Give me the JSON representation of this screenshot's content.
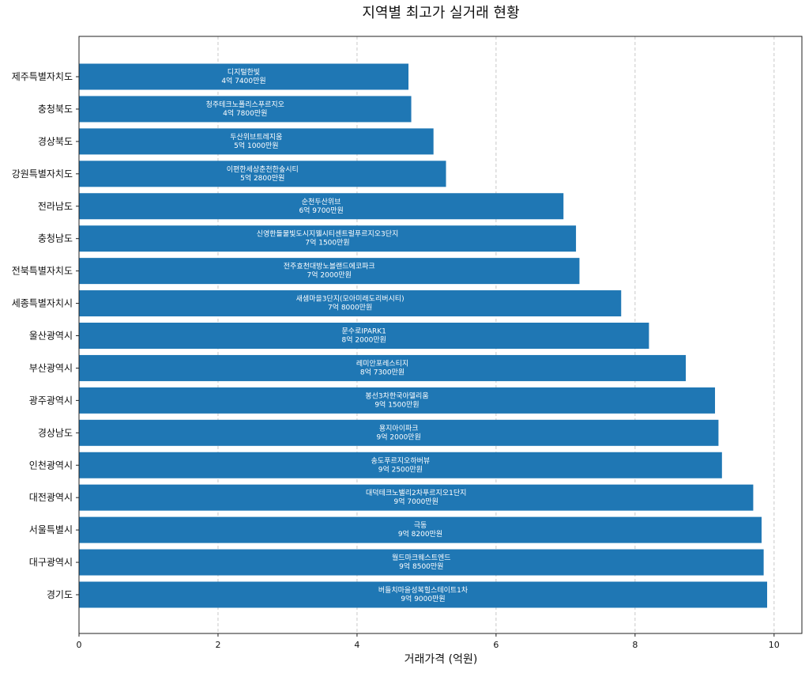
{
  "chart_data": {
    "type": "bar",
    "orientation": "horizontal",
    "title": "지역별 최고가 실거래 현황",
    "xlabel": "거래가격 (억원)",
    "ylabel": "",
    "xlim": [
      0,
      10.4
    ],
    "xticks": [
      0,
      2,
      4,
      6,
      8,
      10
    ],
    "grid": true,
    "bar_color": "#1f77b4",
    "categories": [
      "제주특별자치도",
      "충청북도",
      "경상북도",
      "강원특별자치도",
      "전라남도",
      "충청남도",
      "전북특별자치도",
      "세종특별자치시",
      "울산광역시",
      "부산광역시",
      "광주광역시",
      "경상남도",
      "인천광역시",
      "대전광역시",
      "서울특별시",
      "대구광역시",
      "경기도"
    ],
    "values": [
      4.74,
      4.78,
      5.1,
      5.28,
      6.97,
      7.15,
      7.2,
      7.8,
      8.2,
      8.73,
      9.15,
      9.2,
      9.25,
      9.7,
      9.82,
      9.85,
      9.9
    ],
    "bar_names": [
      "디지털한빛",
      "청주테크노폴리스푸르지오",
      "두산위브트레지움",
      "이편한세상춘천한숲시티",
      "순천두산위브",
      "신영한들물빛도시지웰시티센트럴푸르지오3단지",
      "전주효천대방노블랜드에코파크",
      "새샘마을3단지(모아미래도리버시티)",
      "문수로IPARK1",
      "레미안포레스티지",
      "봉선3차한국아델리움",
      "용지아이파크",
      "송도푸르지오하버뷰",
      "대덕테크노밸리2차푸르지오1단지",
      "극동",
      "월드마크웨스트엔드",
      "버들치마을성복힐스테이트1차"
    ],
    "price_labels": [
      "4억 7400만원",
      "4억 7800만원",
      "5억 1000만원",
      "5억 2800만원",
      "6억 9700만원",
      "7억 1500만원",
      "7억 2000만원",
      "7억 8000만원",
      "8억 2000만원",
      "8억 7300만원",
      "9억 1500만원",
      "9억 2000만원",
      "9억 2500만원",
      "9억 7000만원",
      "9억 8200만원",
      "9억 8500만원",
      "9억 9000만원"
    ]
  }
}
